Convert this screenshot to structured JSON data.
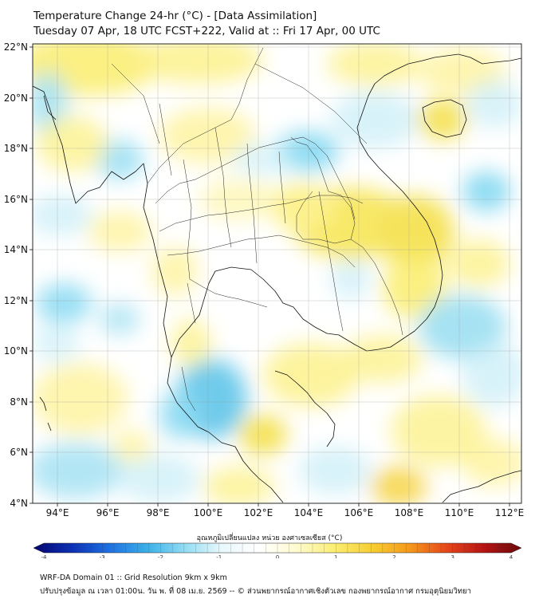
{
  "title": {
    "line1": "Temperature Change 24-hr (°C) - [Data Assimilation]",
    "line2": "Tuesday 07 Apr, 18 UTC FCST+222, Valid at :: Fri 17 Apr, 00 UTC"
  },
  "map": {
    "lon_range": [
      93,
      112.5
    ],
    "lat_range": [
      4,
      22.2
    ],
    "x_ticks": [
      "94°E",
      "96°E",
      "98°E",
      "100°E",
      "102°E",
      "104°E",
      "106°E",
      "108°E",
      "110°E",
      "112°E"
    ],
    "y_ticks": [
      "22°N",
      "20°N",
      "18°N",
      "16°N",
      "14°N",
      "12°N",
      "10°N",
      "8°N",
      "6°N",
      "4°N"
    ],
    "gridlines": true,
    "colors": {
      "neutral": "#ffffff",
      "warm_light": "#fff59a",
      "warm": "#f5e35c",
      "cool_light": "#cdeff8",
      "cool": "#7fd3ee",
      "border": "#111111"
    }
  },
  "colorbar": {
    "title": "อุณหภูมิเปลี่ยนแปลง หน่วย องศาเซลเซียส (°C)",
    "tick_labels": [
      "-4",
      "-3",
      "-2",
      "-1",
      "0",
      "1",
      "2",
      "3",
      "4"
    ],
    "range": [
      -4,
      4
    ],
    "colors": [
      "#04046e",
      "#0c2fb4",
      "#1e6fe0",
      "#3aaee9",
      "#8fdcf3",
      "#e8f8fc",
      "#ffffff",
      "#fffbd0",
      "#fbee74",
      "#f6cf33",
      "#f59a1d",
      "#e6471a",
      "#b61414",
      "#6a0a0a"
    ]
  },
  "footer": {
    "line1": "WRF-DA Domain 01 :: Grid Resolution 9km x 9km",
    "line2": "ปรับปรุงข้อมูล ณ เวลา 01:00น. วัน พ. ที่ 08 เม.ย. 2569 -- © ส่วนพยากรณ์อากาศเชิงตัวเลข กองพยากรณ์อากาศ กรมอุตุนิยมวิทยา"
  }
}
